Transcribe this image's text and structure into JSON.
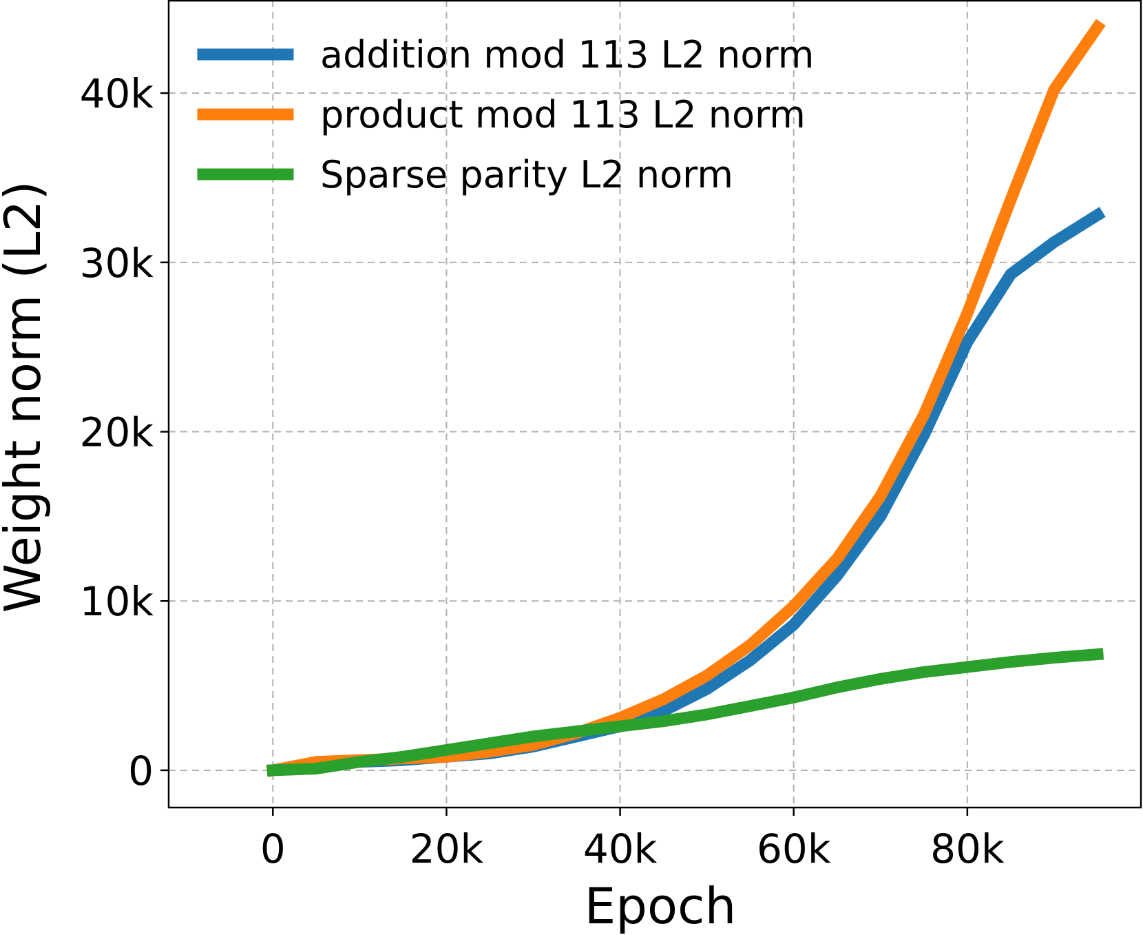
{
  "chart_data": {
    "type": "line",
    "title": "",
    "xlabel": "Epoch",
    "ylabel": "Weight norm (L2)",
    "xlim": [
      -12000,
      100000
    ],
    "ylim": [
      -2200,
      45500
    ],
    "x_ticks": [
      0,
      20000,
      40000,
      60000,
      80000
    ],
    "x_tick_labels": [
      "0",
      "20k",
      "40k",
      "60k",
      "80k"
    ],
    "y_ticks": [
      0,
      10000,
      20000,
      30000,
      40000
    ],
    "y_tick_labels": [
      "0",
      "10k",
      "20k",
      "30k",
      "40k"
    ],
    "grid": true,
    "legend_position": "top-left",
    "x": [
      0,
      5000,
      10000,
      15000,
      20000,
      25000,
      30000,
      35000,
      40000,
      45000,
      50000,
      55000,
      60000,
      65000,
      70000,
      75000,
      80000,
      85000,
      90000,
      95000
    ],
    "series": [
      {
        "name": "addition mod 113 L2 norm",
        "color": "#1f77b4",
        "values": [
          0,
          400,
          500,
          600,
          800,
          1000,
          1400,
          2000,
          2600,
          3500,
          4800,
          6500,
          8600,
          11500,
          15000,
          19800,
          25300,
          29300,
          31200,
          32800
        ]
      },
      {
        "name": "product mod 113 L2 norm",
        "color": "#ff7f0e",
        "values": [
          0,
          500,
          600,
          700,
          800,
          1100,
          1500,
          2200,
          3100,
          4200,
          5600,
          7400,
          9700,
          12500,
          16200,
          21000,
          27000,
          33700,
          40200,
          43900
        ]
      },
      {
        "name": "Sparse parity L2 norm",
        "color": "#2ca02c",
        "values": [
          0,
          100,
          500,
          800,
          1200,
          1600,
          2000,
          2300,
          2600,
          2900,
          3300,
          3800,
          4300,
          4900,
          5400,
          5800,
          6100,
          6400,
          6650,
          6850
        ]
      }
    ]
  }
}
